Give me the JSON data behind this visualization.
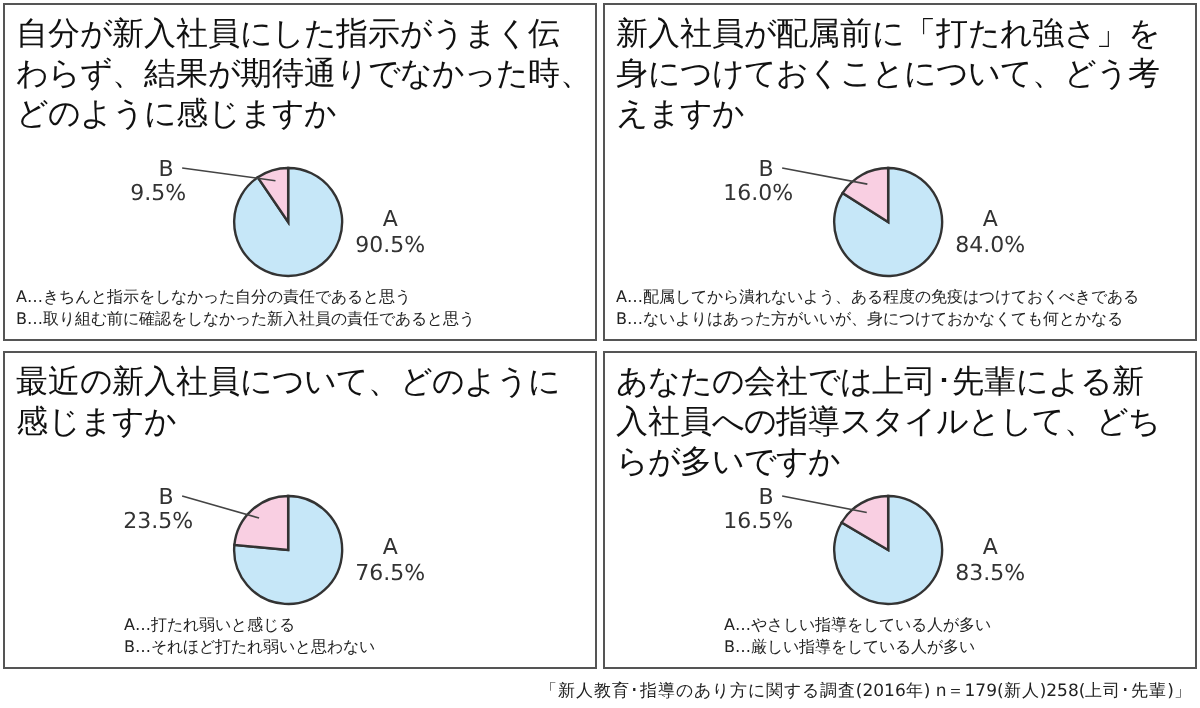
{
  "chart_data": [
    {
      "type": "pie",
      "title": "自分が新入社員にした指示がうまく伝わらず、結果が期待通りでなかった時、どのように感じますか",
      "categories": [
        "A",
        "B"
      ],
      "values": [
        90.5,
        9.5
      ],
      "colors": [
        "#c6e7f8",
        "#f9cfe2"
      ],
      "value_labels": [
        "90.5%",
        "9.5%"
      ],
      "annotations": [
        "A…きちんと指示をしなかった自分の責任であると思う",
        "B…取り組む前に確認をしなかった新入社員の責任であると思う"
      ]
    },
    {
      "type": "pie",
      "title": "新入社員が配属前に「打たれ強さ」を身につけておくことについて、どう考えますか",
      "categories": [
        "A",
        "B"
      ],
      "values": [
        84.0,
        16.0
      ],
      "colors": [
        "#c6e7f8",
        "#f9cfe2"
      ],
      "value_labels": [
        "84.0%",
        "16.0%"
      ],
      "annotations": [
        "A…配属してから潰れないよう、ある程度の免疫はつけておくべきである",
        "B…ないよりはあった方がいいが、身につけておかなくても何とかなる"
      ]
    },
    {
      "type": "pie",
      "title": "最近の新入社員について、どのように感じますか",
      "categories": [
        "A",
        "B"
      ],
      "values": [
        76.5,
        23.5
      ],
      "colors": [
        "#c6e7f8",
        "#f9cfe2"
      ],
      "value_labels": [
        "76.5%",
        "23.5%"
      ],
      "annotations": [
        "A…打たれ弱いと感じる",
        "B…それほど打たれ弱いと思わない"
      ]
    },
    {
      "type": "pie",
      "title": "あなたの会社では上司･先輩による新入社員への指導スタイルとして、どちらが多いですか",
      "categories": [
        "A",
        "B"
      ],
      "values": [
        83.5,
        16.5
      ],
      "colors": [
        "#c6e7f8",
        "#f9cfe2"
      ],
      "value_labels": [
        "83.5%",
        "16.5%"
      ],
      "annotations": [
        "A…やさしい指導をしている人が多い",
        "B…厳しい指導をしている人が多い",
        "「新人教育･指導のあり方に関する調査(2016年) n＝179(新人)258(上司･先輩)」"
      ]
    }
  ]
}
